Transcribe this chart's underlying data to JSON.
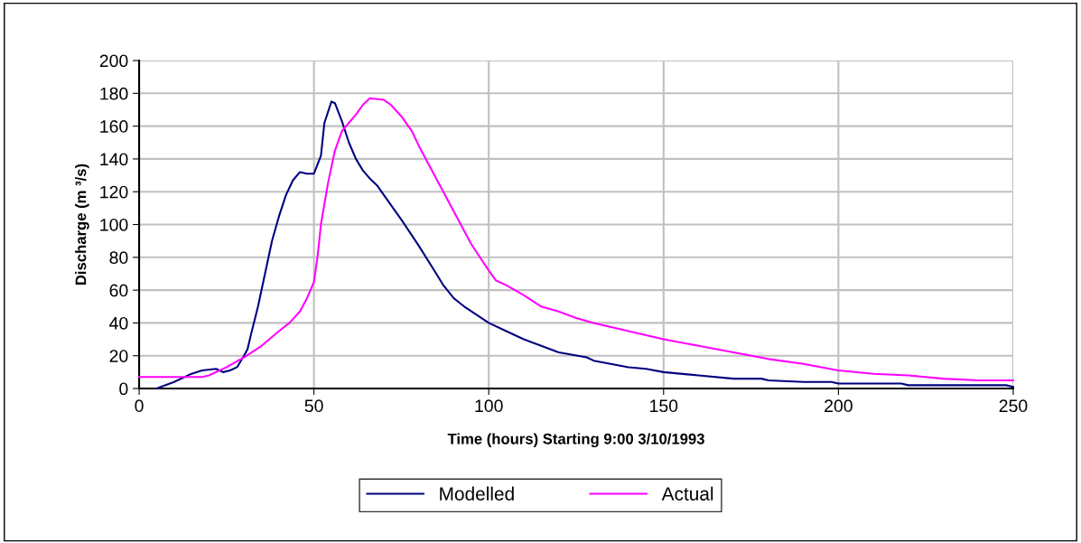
{
  "chart_data": {
    "type": "line",
    "xlabel": "Time (hours) Starting 9:00 3/10/1993",
    "ylabel": "Discharge (m ³/s)",
    "xlim": [
      0,
      250
    ],
    "xticks": [
      0,
      50,
      100,
      150,
      200,
      250
    ],
    "ylim": [
      0,
      200
    ],
    "yticks": [
      0,
      20,
      40,
      60,
      80,
      100,
      120,
      140,
      160,
      180,
      200
    ],
    "grid": true,
    "legend": "bottom",
    "marker": "none",
    "line_style": "solid",
    "series": [
      {
        "name": "Modelled",
        "color": "#000080",
        "x": [
          5,
          10,
          15,
          18,
          22,
          24,
          26,
          28,
          30,
          31,
          32,
          34,
          36,
          38,
          40,
          42,
          44,
          46,
          48,
          50,
          52,
          53,
          55,
          56,
          58,
          60,
          62,
          64,
          66,
          68,
          70,
          75,
          80,
          85,
          87,
          90,
          93,
          100,
          105,
          110,
          120,
          128,
          130,
          140,
          145,
          150,
          160,
          170,
          178,
          180,
          190,
          198,
          200,
          210,
          218,
          220,
          240,
          248,
          250
        ],
        "values": [
          0,
          4,
          9,
          11,
          12,
          10,
          11,
          13,
          20,
          24,
          33,
          50,
          70,
          90,
          105,
          118,
          127,
          132,
          131,
          131,
          142,
          162,
          175,
          174,
          163,
          150,
          140,
          133,
          128,
          124,
          118,
          103,
          87,
          70,
          63,
          55,
          50,
          40,
          35,
          30,
          22,
          19,
          17,
          13,
          12,
          10,
          8,
          6,
          6,
          5,
          4,
          4,
          3,
          3,
          3,
          2,
          2,
          2,
          1
        ]
      },
      {
        "name": "Actual",
        "color": "#ff00ff",
        "x": [
          0,
          18,
          20,
          25,
          30,
          35,
          40,
          43,
          46,
          48,
          50,
          51,
          52,
          54,
          56,
          58,
          60,
          62,
          64,
          66,
          70,
          72,
          75,
          78,
          80,
          85,
          90,
          95,
          100,
          102,
          105,
          110,
          115,
          120,
          125,
          130,
          140,
          150,
          160,
          170,
          180,
          190,
          200,
          210,
          220,
          230,
          240,
          250
        ],
        "values": [
          7,
          7,
          8,
          13,
          19,
          26,
          35,
          40,
          47,
          55,
          65,
          80,
          100,
          125,
          145,
          157,
          162,
          167,
          173,
          177,
          176,
          173,
          166,
          157,
          148,
          128,
          108,
          88,
          72,
          66,
          63,
          57,
          50,
          47,
          43,
          40,
          35,
          30,
          26,
          22,
          18,
          15,
          11,
          9,
          8,
          6,
          5,
          5
        ]
      }
    ]
  }
}
